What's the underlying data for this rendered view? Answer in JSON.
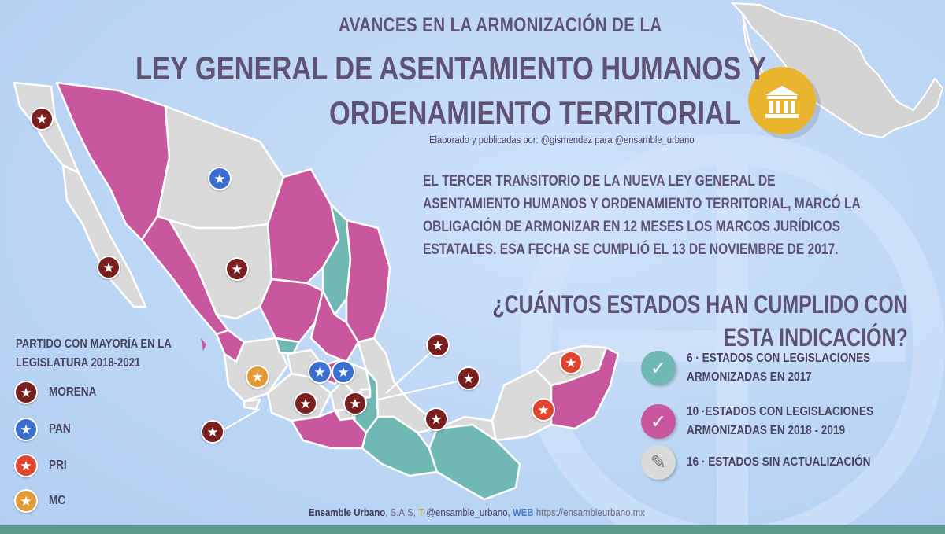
{
  "title": {
    "line1": "AVANCES EN LA ARMONIZACIÓN DE LA",
    "line2": "LEY GENERAL DE ASENTAMIENTO HUMANOS Y",
    "line3": "ORDENAMIENTO TERRITORIAL",
    "credit": "Elaborado y publicadas por: @gismendez para @ensamble_urbano"
  },
  "description": "EL TERCER TRANSITORIO DE LA NUEVA LEY GENERAL DE ASENTAMIENTO HUMANOS Y ORDENAMIENTO TERRITORIAL, MARCÓ LA OBLIGACIÓN DE ARMONIZAR EN 12 MESES LOS MARCOS JURÍDICOS ESTATALES. ESA FECHA SE CUMPLIÓ EL 13 DE NOVIEMBRE DE 2017.",
  "question": "¿CUÁNTOS ESTADOS HAN CUMPLIDO CON ESTA INDICACIÓN?",
  "party_legend": {
    "title": "PARTIDO CON MAYORÍA EN LA LEGISLATURA 2018-2021",
    "items": [
      {
        "label": "MORENA",
        "color": "#7a1f1f"
      },
      {
        "label": "PAN",
        "color": "#3a6fcf"
      },
      {
        "label": "PRI",
        "color": "#e0452e"
      },
      {
        "label": "MC",
        "color": "#e39a35"
      }
    ]
  },
  "status_legend": [
    {
      "line1": "6 · ESTADOS CON LEGISLACIONES",
      "line2": "ARMONIZADAS EN 2017",
      "color": "#6fb8b4",
      "icon": "check-icon"
    },
    {
      "line1": "10 ·ESTADOS CON LEGISLACIONES",
      "line2": "ARMONIZADAS EN 2018 - 2019",
      "color": "#c8579d",
      "icon": "check-icon"
    },
    {
      "line1": "16 · ESTADOS SIN ACTUALIZACIÓN",
      "line2": "",
      "color": "#dadada",
      "icon": "pencil-icon"
    }
  ],
  "footer": {
    "brand": "Ensamble Urbano",
    "suffix": ", S.A.S,",
    "twitter_tag": "T",
    "twitter": "@ensamble_urbano,",
    "web_tag": "WEB",
    "url": "https://ensambleurbano.mx"
  },
  "colors": {
    "text": "#5e5275",
    "harmonized_2017": "#6fb8b4",
    "harmonized_2018_2019": "#c8579d",
    "not_updated": "#dadada",
    "background": "#bcd6f5",
    "icon_circle": "#e9b52f"
  }
}
